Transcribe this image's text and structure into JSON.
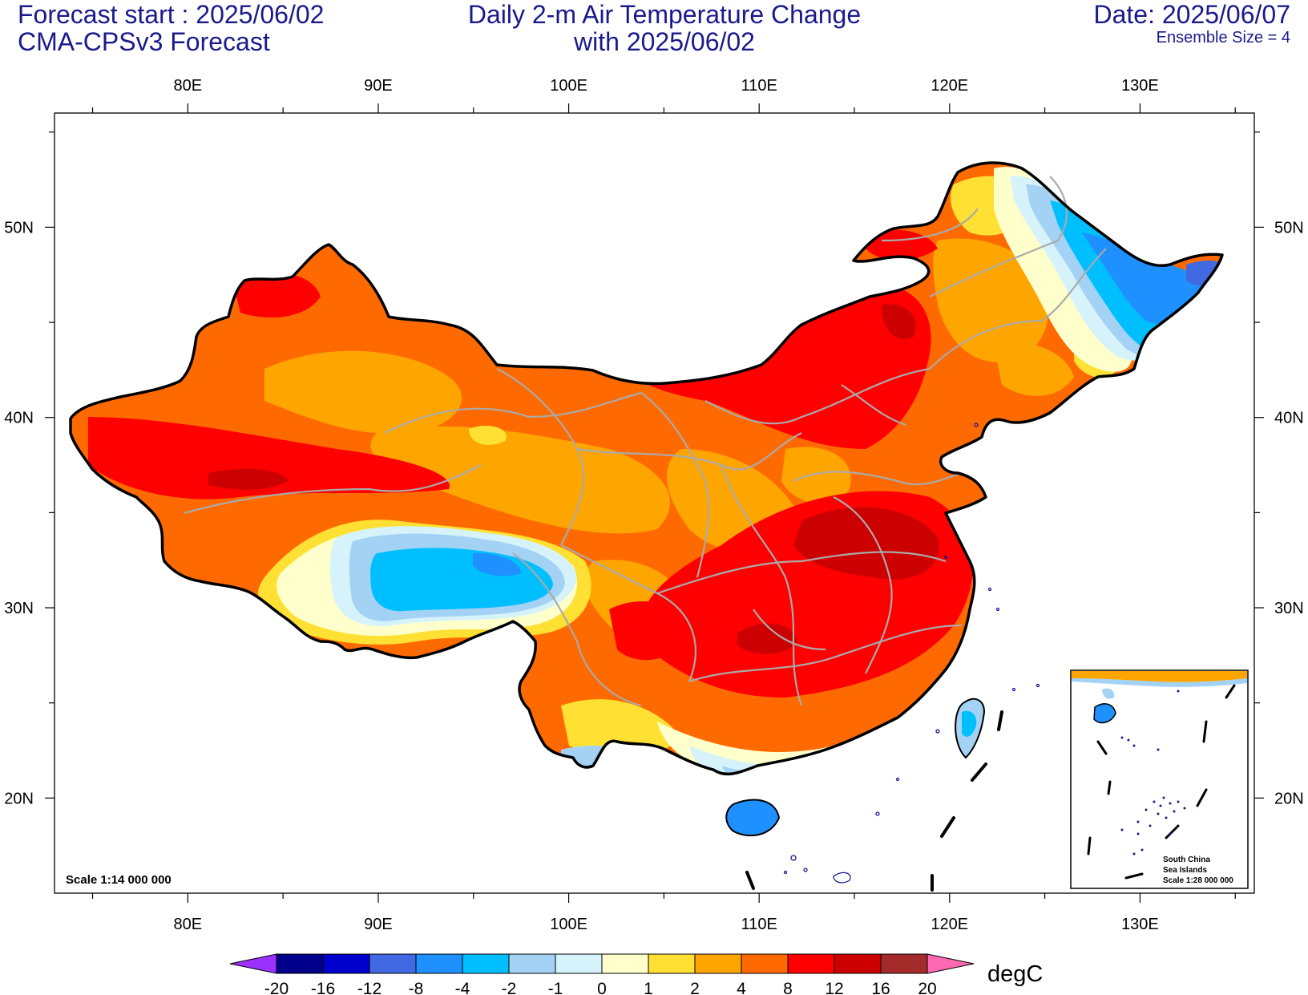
{
  "header": {
    "left_line1": "Forecast start : 2025/06/02",
    "left_line2": "CMA-CPSv3 Forecast",
    "center_line1": "Daily 2-m Air Temperature Change",
    "center_line2": "with 2025/06/02",
    "right_line1": "Date: 2025/06/07",
    "right_line2": "Ensemble Size = 4"
  },
  "map": {
    "lon_range": [
      73,
      136
    ],
    "lat_range": [
      15,
      56
    ],
    "lon_ticks": [
      "80E",
      "90E",
      "100E",
      "110E",
      "120E",
      "130E"
    ],
    "lat_ticks": [
      "50N",
      "40N",
      "30N",
      "20N"
    ],
    "scale_main": "Scale 1:14 000 000",
    "inset_title_1": "South China",
    "inset_title_2": "Sea Islands",
    "inset_scale": "Scale 1:28 000 000"
  },
  "colorbar": {
    "unit": "degC",
    "levels": [
      "-20",
      "-16",
      "-12",
      "-8",
      "-4",
      "-2",
      "-1",
      "0",
      "1",
      "2",
      "4",
      "8",
      "12",
      "16",
      "20"
    ],
    "colors": [
      "#9b30ff",
      "#00008b",
      "#0000cd",
      "#4169e1",
      "#1e90ff",
      "#00bfff",
      "#a3d2f5",
      "#d6f3fc",
      "#ffffcc",
      "#ffe033",
      "#ffa500",
      "#ff6a00",
      "#ff0000",
      "#cc0000",
      "#a52a2a",
      "#ff69b4"
    ]
  }
}
